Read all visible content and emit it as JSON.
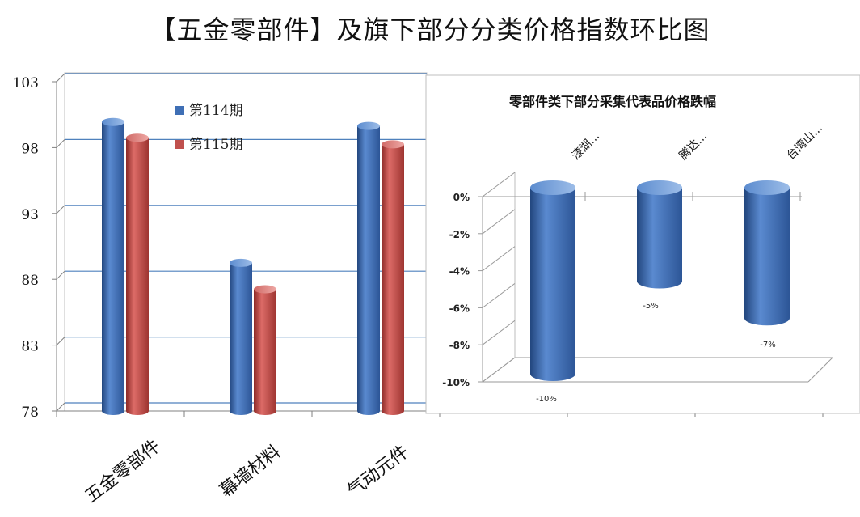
{
  "title": "【五金零部件】及旗下部分分类价格指数环比图",
  "chart_data": [
    {
      "type": "bar",
      "title": "",
      "categories": [
        "五金零部件",
        "幕墙材料",
        "气动元件"
      ],
      "series": [
        {
          "name": "第114期",
          "color": "#3f6fb5",
          "values": [
            99.7,
            89.0,
            99.4
          ]
        },
        {
          "name": "第115期",
          "color": "#c0504d",
          "values": [
            98.5,
            87.0,
            98.0
          ]
        }
      ],
      "ylim": [
        78,
        103
      ],
      "yticks": [
        "78",
        "83",
        "88",
        "93",
        "98",
        "103"
      ],
      "grid": true,
      "legend": "top-center",
      "three_d": true
    },
    {
      "type": "bar",
      "title": "零部件类下部分采集代表品价格跌幅",
      "categories": [
        "漆湖...",
        "腾达...",
        "台湾山..."
      ],
      "values": [
        -10,
        -5,
        -7
      ],
      "data_labels": [
        "-10%",
        "-5%",
        "-7%"
      ],
      "ylim": [
        -10,
        0
      ],
      "yticks": [
        "0%",
        "-2%",
        "-4%",
        "-6%",
        "-8%",
        "-10%"
      ],
      "color": "#4a7ec4",
      "three_d": true
    }
  ]
}
